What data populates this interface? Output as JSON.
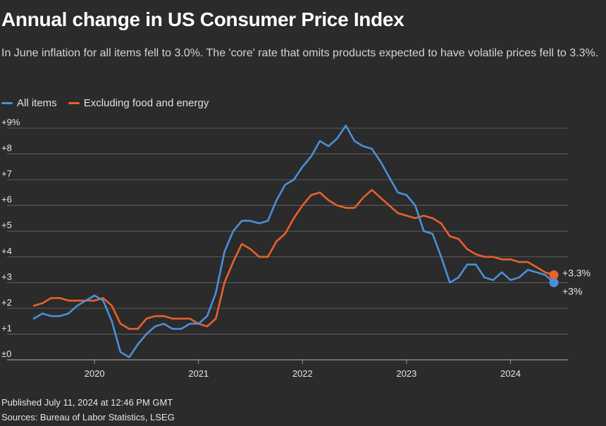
{
  "title": "Annual change in US Consumer Price Index",
  "subtitle": "In June inflation for all items fell to 3.0%. The 'core' rate that omits products expected to have volatile prices fell to 3.3%.",
  "footer": {
    "published": "Published July 11, 2024 at 12:46 PM GMT",
    "sources": "Sources: Bureau of Labor Statistics, LSEG"
  },
  "colors": {
    "all_items": "#4a90d9",
    "core": "#e8622a",
    "grid": "#6a6a6a",
    "text": "#e6e6e6"
  },
  "chart_data": {
    "type": "line",
    "title": "Annual change in US Consumer Price Index",
    "xlabel": "",
    "ylabel": "",
    "ylim": [
      0,
      9
    ],
    "y_ticks": [
      {
        "value": 0,
        "label": "±0"
      },
      {
        "value": 1,
        "label": "+1"
      },
      {
        "value": 2,
        "label": "+2"
      },
      {
        "value": 3,
        "label": "+3"
      },
      {
        "value": 4,
        "label": "+4"
      },
      {
        "value": 5,
        "label": "+5"
      },
      {
        "value": 6,
        "label": "+6"
      },
      {
        "value": 7,
        "label": "+7"
      },
      {
        "value": 8,
        "label": "+8"
      },
      {
        "value": 9,
        "label": "+9%"
      }
    ],
    "x_ticks": [
      {
        "index": 7,
        "label": "2020"
      },
      {
        "index": 19,
        "label": "2021"
      },
      {
        "index": 31,
        "label": "2022"
      },
      {
        "index": 43,
        "label": "2023"
      },
      {
        "index": 55,
        "label": "2024"
      }
    ],
    "x_range": [
      0,
      61
    ],
    "period": "Jun 2019 – Jun 2024 (monthly)",
    "legend_position": "top-left",
    "series": [
      {
        "name": "All items",
        "color": "#4a90d9",
        "end_label": "+3%",
        "values": [
          1.6,
          1.8,
          1.7,
          1.7,
          1.8,
          2.1,
          2.3,
          2.5,
          2.3,
          1.5,
          0.3,
          0.1,
          0.6,
          1.0,
          1.3,
          1.4,
          1.2,
          1.2,
          1.4,
          1.4,
          1.7,
          2.6,
          4.2,
          5.0,
          5.4,
          5.4,
          5.3,
          5.4,
          6.2,
          6.8,
          7.0,
          7.5,
          7.9,
          8.5,
          8.3,
          8.6,
          9.1,
          8.5,
          8.3,
          8.2,
          7.7,
          7.1,
          6.5,
          6.4,
          6.0,
          5.0,
          4.9,
          4.0,
          3.0,
          3.2,
          3.7,
          3.7,
          3.2,
          3.1,
          3.4,
          3.1,
          3.2,
          3.5,
          3.4,
          3.3,
          3.0
        ]
      },
      {
        "name": "Excluding food and energy",
        "color": "#e8622a",
        "end_label": "+3.3%",
        "values": [
          2.1,
          2.2,
          2.4,
          2.4,
          2.3,
          2.3,
          2.3,
          2.3,
          2.4,
          2.1,
          1.4,
          1.2,
          1.2,
          1.6,
          1.7,
          1.7,
          1.6,
          1.6,
          1.6,
          1.4,
          1.3,
          1.6,
          3.0,
          3.8,
          4.5,
          4.3,
          4.0,
          4.0,
          4.6,
          4.9,
          5.5,
          6.0,
          6.4,
          6.5,
          6.2,
          6.0,
          5.9,
          5.9,
          6.3,
          6.6,
          6.3,
          6.0,
          5.7,
          5.6,
          5.5,
          5.6,
          5.5,
          5.3,
          4.8,
          4.7,
          4.3,
          4.1,
          4.0,
          4.0,
          3.9,
          3.9,
          3.8,
          3.8,
          3.6,
          3.4,
          3.3
        ]
      }
    ]
  }
}
